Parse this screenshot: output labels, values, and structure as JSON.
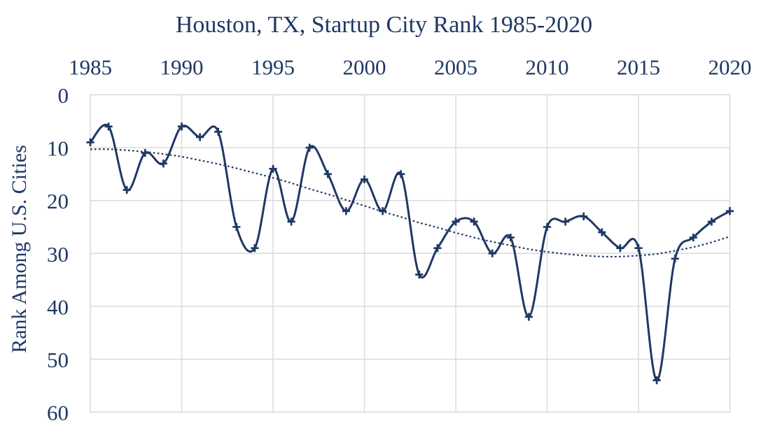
{
  "chart_data": {
    "type": "line",
    "title": "Houston, TX, Startup City Rank 1985-2020",
    "xlabel": "",
    "ylabel": "Rank Among U.S. Cities",
    "x_range": [
      1985,
      2020
    ],
    "y_range": [
      0,
      60
    ],
    "y_inverted": true,
    "y_axis_note": "rank 0 at top, 60 at bottom",
    "x_ticks": [
      1985,
      1990,
      1995,
      2000,
      2005,
      2010,
      2015,
      2020
    ],
    "y_ticks": [
      0,
      10,
      20,
      30,
      40,
      50,
      60
    ],
    "grid": true,
    "legend": "none",
    "years": [
      1985,
      1986,
      1987,
      1988,
      1989,
      1990,
      1991,
      1992,
      1993,
      1994,
      1995,
      1996,
      1997,
      1998,
      1999,
      2000,
      2001,
      2002,
      2003,
      2004,
      2005,
      2006,
      2007,
      2008,
      2009,
      2010,
      2011,
      2012,
      2013,
      2014,
      2015,
      2016,
      2017,
      2018,
      2019,
      2020
    ],
    "series": [
      {
        "name": "Houston startup city rank",
        "style": "smooth-solid-plus-markers",
        "values": [
          9,
          6,
          18,
          11,
          13,
          6,
          8,
          7,
          25,
          29,
          14,
          24,
          10,
          15,
          22,
          16,
          22,
          15,
          34,
          29,
          24,
          24,
          30,
          27,
          42,
          25,
          24,
          23,
          26,
          29,
          29,
          54,
          31,
          27,
          24,
          22
        ]
      },
      {
        "name": "polynomial trendline",
        "style": "dotted",
        "values": [
          10.3,
          10.3,
          10.5,
          10.8,
          11.2,
          11.7,
          12.4,
          13.1,
          13.9,
          14.8,
          15.7,
          16.7,
          17.8,
          18.8,
          19.9,
          21.0,
          22.1,
          23.1,
          24.2,
          25.1,
          26.1,
          27.0,
          27.8,
          28.5,
          29.2,
          29.7,
          30.1,
          30.4,
          30.6,
          30.6,
          30.4,
          30.1,
          29.5,
          28.8,
          27.9,
          26.8
        ]
      }
    ],
    "colors": {
      "line": "#1f3864",
      "trend": "#1f3864",
      "text": "#1f3864",
      "grid": "#d9d9d9",
      "background": "#ffffff"
    }
  }
}
